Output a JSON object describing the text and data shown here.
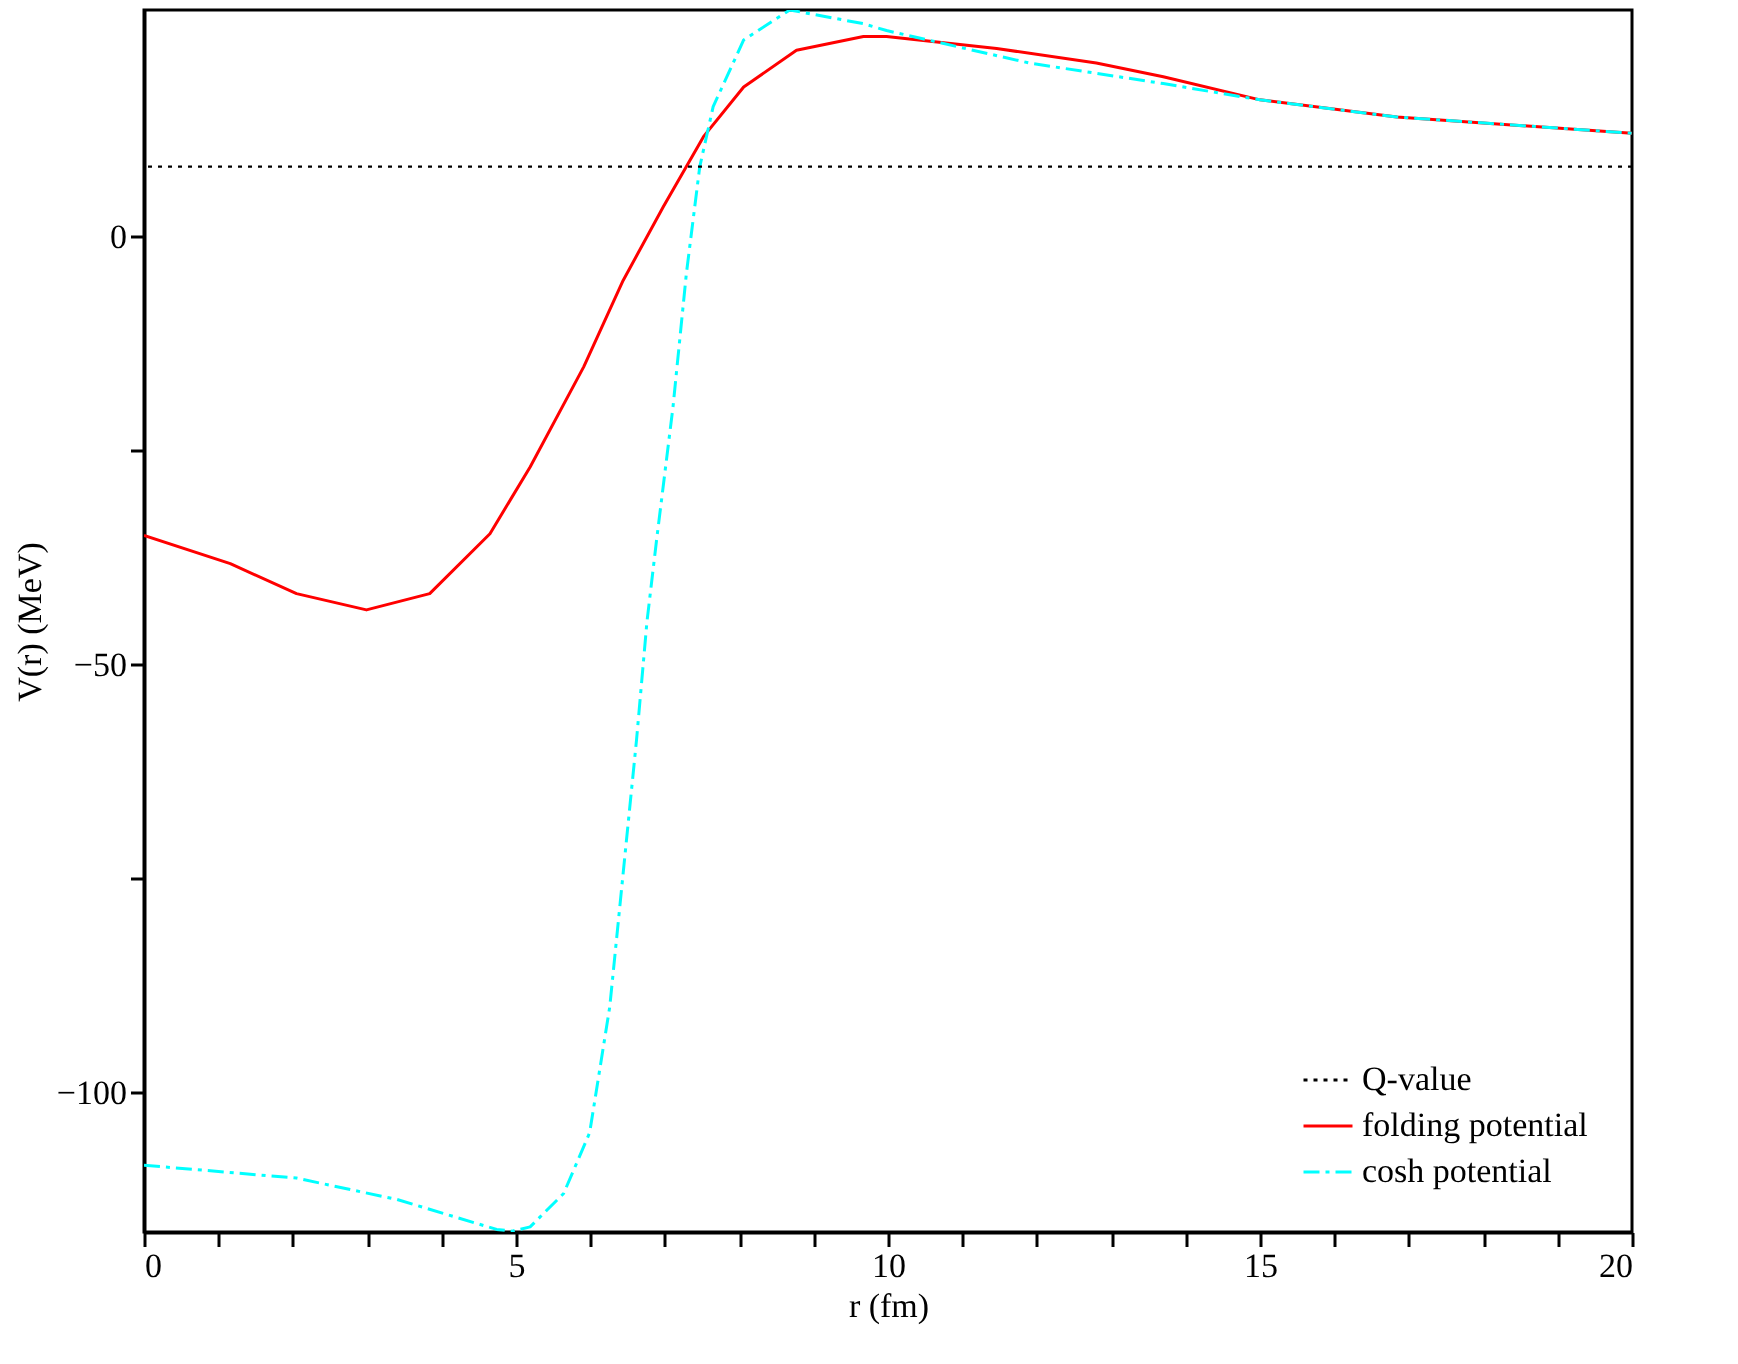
{
  "chart_data": {
    "type": "line",
    "xlabel": "r (fm)",
    "ylabel": "V(r) (MeV)",
    "xlim": [
      0,
      20
    ],
    "ylim": [
      -116.3,
      26.5
    ],
    "xticks": [
      0,
      {
        "value": 1,
        "label": null
      },
      {
        "value": 2,
        "label": null
      },
      {
        "value": 3,
        "label": null
      },
      {
        "value": 4,
        "label": null
      },
      5,
      {
        "value": 6,
        "label": null
      },
      {
        "value": 7,
        "label": null
      },
      {
        "value": 8,
        "label": null
      },
      {
        "value": 9,
        "label": null
      },
      10,
      {
        "value": 11,
        "label": null
      },
      {
        "value": 12,
        "label": null
      },
      {
        "value": 13,
        "label": null
      },
      {
        "value": 14,
        "label": null
      },
      15,
      {
        "value": 16,
        "label": null
      },
      {
        "value": 17,
        "label": null
      },
      {
        "value": 18,
        "label": null
      },
      {
        "value": 19,
        "label": null
      },
      20
    ],
    "yticks": [
      -100,
      {
        "value": -75,
        "label": null
      },
      -50,
      {
        "value": -25,
        "label": null
      },
      0
    ],
    "grid": false,
    "legend": "bottom right",
    "marker": "none",
    "ref_lines": [
      {
        "axis": "y",
        "value": 8.2,
        "label": "Q-value",
        "color": "#000000",
        "line_style": "dotted"
      }
    ],
    "series": [
      {
        "name": "folding potential",
        "color": "#ff0000",
        "line_style": "solid",
        "x": [
          0,
          1.16,
          2.05,
          2.99,
          3.84,
          4.65,
          5.19,
          5.91,
          6.44,
          6.98,
          7.52,
          8.06,
          8.77,
          9.67,
          9.98,
          11.46,
          12.8,
          13.7,
          15.0,
          16.84,
          20
        ],
        "values": [
          -34.9,
          -38.2,
          -41.7,
          -43.6,
          -41.7,
          -34.7,
          -26.9,
          -15.2,
          -5.1,
          3.5,
          11.7,
          17.5,
          21.8,
          23.4,
          23.4,
          22.0,
          20.3,
          18.7,
          16.0,
          14.0,
          12.1
        ]
      },
      {
        "name": "cosh potential",
        "color": "#00ffff",
        "line_style": "dashed",
        "x": [
          0,
          2.05,
          3.4,
          4.74,
          4.95,
          5.19,
          5.64,
          5.99,
          6.26,
          6.44,
          6.62,
          6.76,
          6.89,
          7.11,
          7.29,
          7.47,
          7.65,
          8.06,
          8.68,
          9.67,
          9.98,
          11.9,
          13.7,
          15.0,
          16.84,
          20
        ],
        "values": [
          -108.5,
          -110.0,
          -112.5,
          -116.0,
          -116.2,
          -115.7,
          -111.8,
          -104.7,
          -90.0,
          -74.4,
          -58.8,
          -45.0,
          -35.4,
          -19.9,
          -4.3,
          8.2,
          15.2,
          23.0,
          26.5,
          24.9,
          24.1,
          20.3,
          17.9,
          16.0,
          14.0,
          12.1
        ]
      }
    ]
  }
}
